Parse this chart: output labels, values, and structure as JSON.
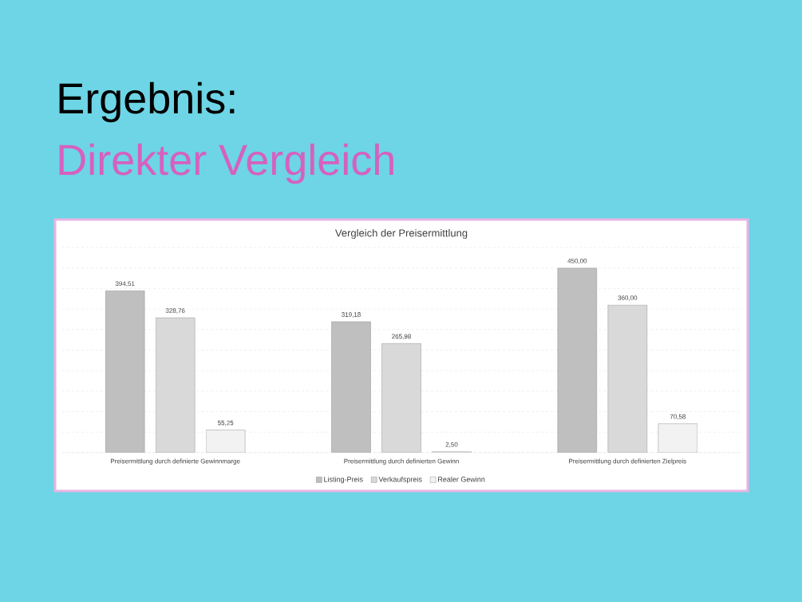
{
  "chart_data": {
    "type": "bar",
    "title": "Vergleich der Preisermittlung",
    "annotations": [
      "Ergebnis:",
      "Direkter Vergleich"
    ],
    "categories": [
      "Preisermittlung durch definierte Gewinnmarge",
      "Preisermittlung durch definierten Gewinn",
      "Preisermittlung durch definierten Zielpreis"
    ],
    "series": [
      {
        "name": "Listing-Preis",
        "color": "#bfbfbf",
        "values": [
          394.51,
          319.18,
          450.0
        ],
        "value_labels": [
          "394,51",
          "319,18",
          "450,00"
        ]
      },
      {
        "name": "Verkaufspreis",
        "color": "#d9d9d9",
        "values": [
          328.76,
          265.98,
          360.0
        ],
        "value_labels": [
          "328,76",
          "265,98",
          "360,00"
        ]
      },
      {
        "name": "Realer Gewinn",
        "color": "#f2f2f2",
        "values": [
          55.25,
          2.5,
          70.58
        ],
        "value_labels": [
          "55,25",
          "2,50",
          "70,58"
        ]
      }
    ],
    "ylim": [
      0,
      500
    ],
    "yticks": [
      {
        "value": 0,
        "label": null
      },
      {
        "value": 50,
        "label": null
      },
      {
        "value": 100,
        "label": null
      },
      {
        "value": 150,
        "label": null
      },
      {
        "value": 200,
        "label": null
      },
      {
        "value": 250,
        "label": null
      },
      {
        "value": 300,
        "label": null
      },
      {
        "value": 350,
        "label": null
      },
      {
        "value": 400,
        "label": null
      },
      {
        "value": 450,
        "label": null
      },
      {
        "value": 500,
        "label": null
      }
    ],
    "grid": "y",
    "legend": "bottom",
    "tick_labels": "x"
  }
}
